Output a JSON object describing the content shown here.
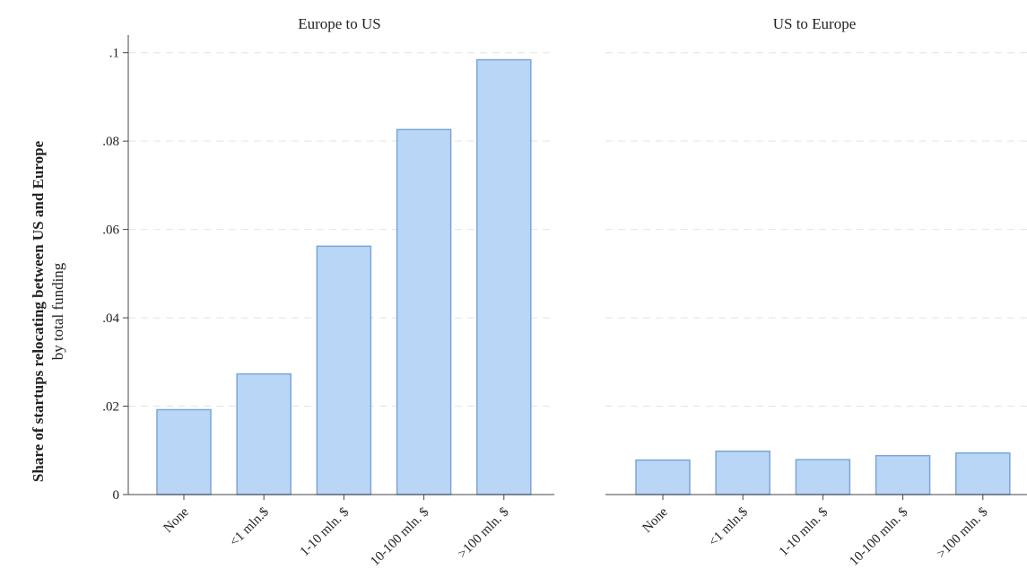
{
  "chart_data": {
    "type": "bar",
    "ylabel": "Share of startups relocating between US and Europe",
    "ylabel_sub": "by total funding",
    "ylim": [
      0,
      0.104
    ],
    "yticks": [
      {
        "value": 0,
        "label": "0"
      },
      {
        "value": 0.02,
        "label": ".02"
      },
      {
        "value": 0.04,
        "label": ".04"
      },
      {
        "value": 0.06,
        "label": ".06"
      },
      {
        "value": 0.08,
        "label": ".08"
      },
      {
        "value": 0.1,
        "label": ".1"
      }
    ],
    "grid": true,
    "bar_color": "#b9d6f7",
    "bar_edge_color": "#7ba6d6",
    "panels": [
      {
        "title": "Europe to US",
        "categories": [
          "None",
          "<1 mln.$",
          "1-10 mln. $",
          "10-100 mln. $",
          ">100 mln. $"
        ],
        "values": [
          0.0192,
          0.0273,
          0.0562,
          0.0826,
          0.0984
        ]
      },
      {
        "title": "US to Europe",
        "categories": [
          "None",
          "<1 mln.$",
          "1-10 mln. $",
          "10-100 mln. $",
          ">100 mln. $"
        ],
        "values": [
          0.0078,
          0.0098,
          0.0079,
          0.0088,
          0.0094
        ]
      }
    ]
  }
}
